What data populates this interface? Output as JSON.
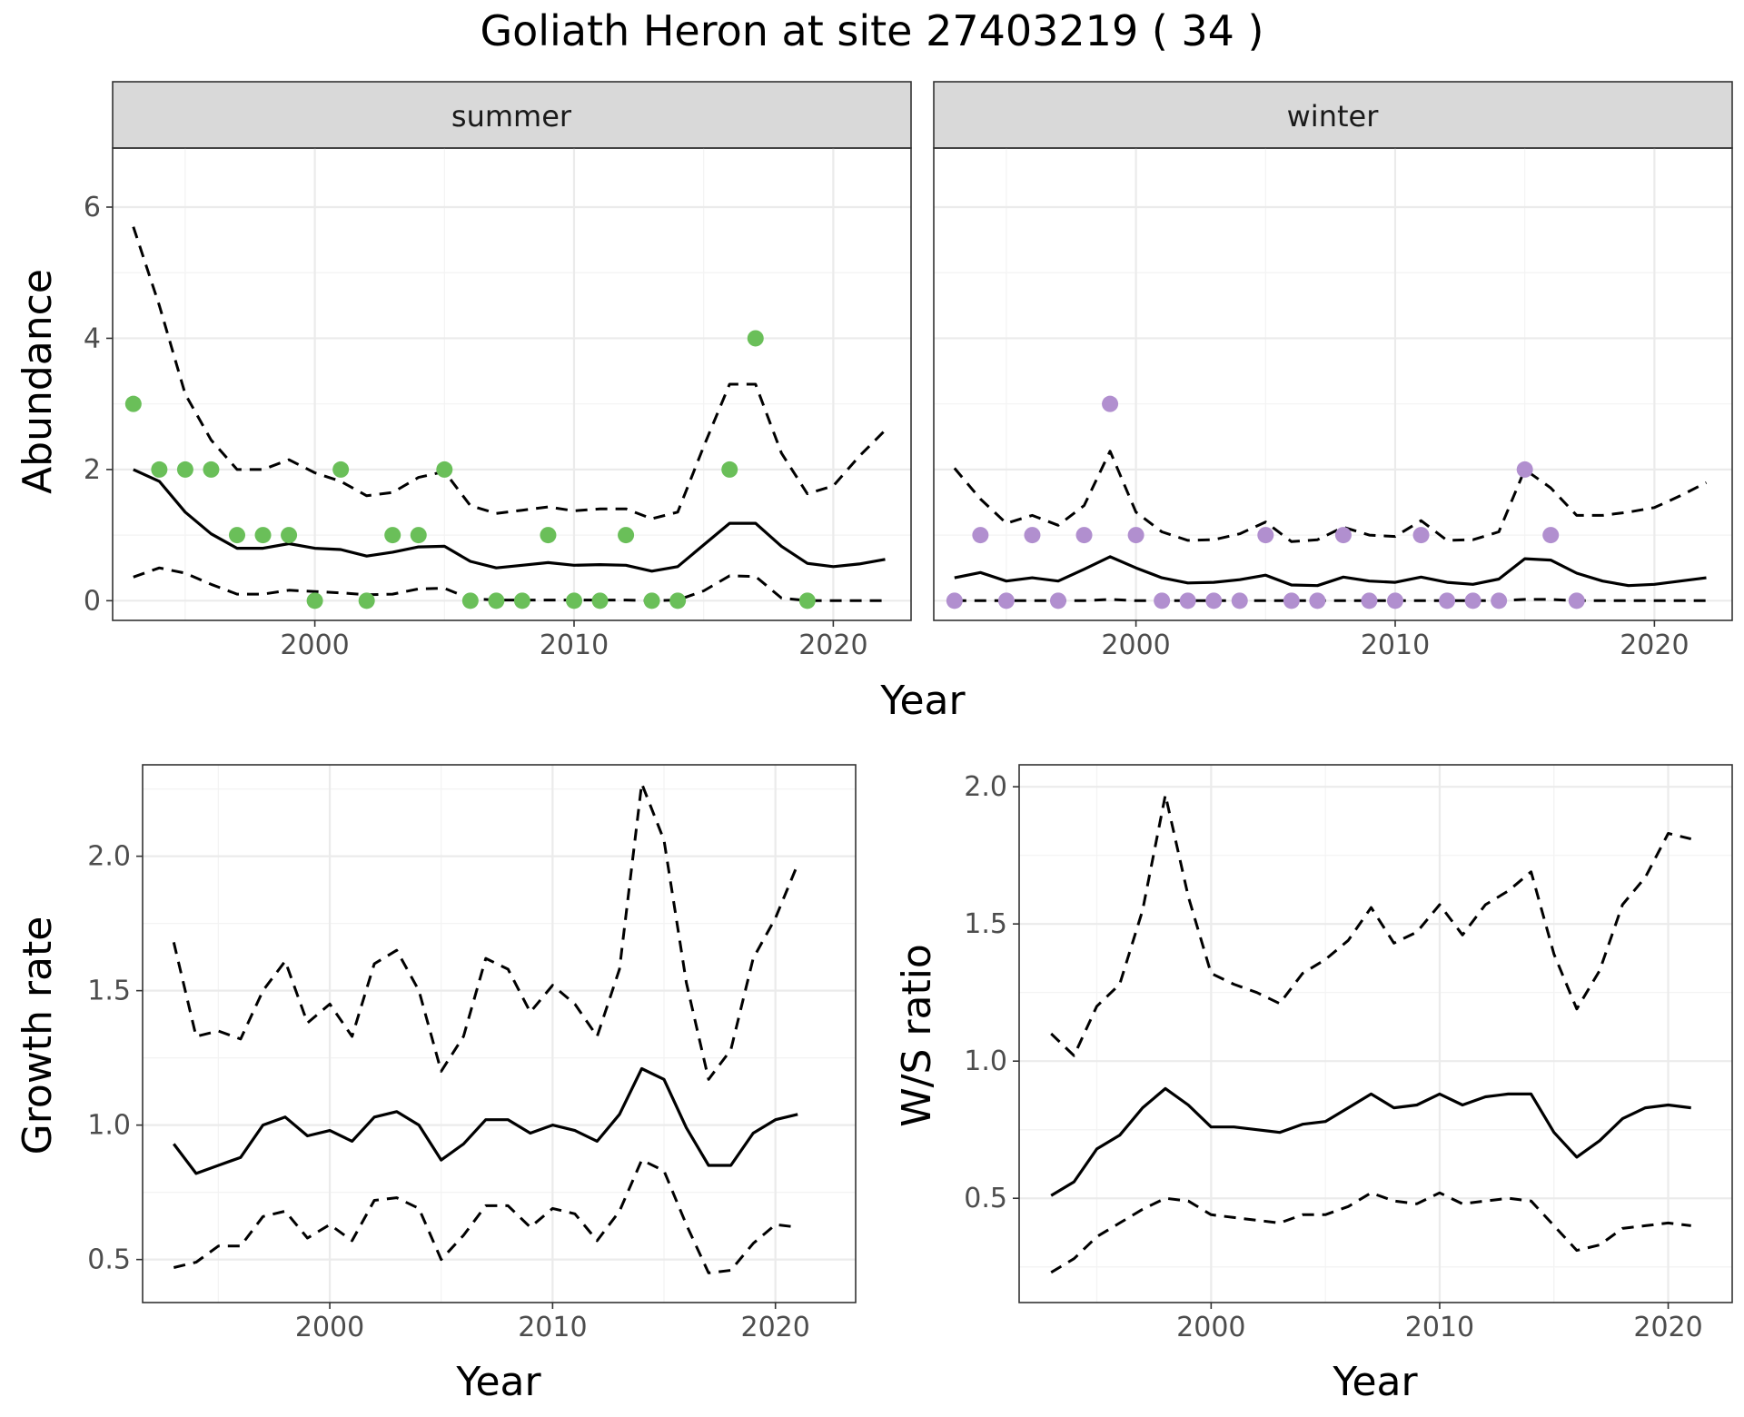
{
  "figure": {
    "title": "Goliath Heron at site 27403219 ( 34 )"
  },
  "colors": {
    "summer_points": "#6abf59",
    "winter_points": "#b18fcf",
    "lines": "#000000"
  },
  "chart_data": [
    {
      "id": "abundance",
      "type": "line",
      "title": "",
      "xlabel": "Year",
      "ylabel": "Abundance",
      "xlim": [
        1992.2,
        2023.0
      ],
      "ylim": [
        -0.3,
        6.9
      ],
      "x_ticks": [
        2000,
        2010,
        2020
      ],
      "y_ticks": [
        0,
        2,
        4,
        6
      ],
      "facets": [
        {
          "strip": "summer",
          "point_color": "#6abf59",
          "fit": {
            "x": [
              1993,
              1994,
              1995,
              1996,
              1997,
              1998,
              1999,
              2000,
              2001,
              2002,
              2003,
              2004,
              2005,
              2006,
              2007,
              2008,
              2009,
              2010,
              2011,
              2012,
              2013,
              2014,
              2015,
              2016,
              2017,
              2018,
              2019,
              2020,
              2021,
              2022
            ],
            "estimate": [
              2.0,
              1.82,
              1.35,
              1.02,
              0.8,
              0.8,
              0.87,
              0.8,
              0.78,
              0.68,
              0.74,
              0.82,
              0.83,
              0.6,
              0.5,
              0.54,
              0.58,
              0.54,
              0.55,
              0.54,
              0.45,
              0.52,
              0.85,
              1.18,
              1.18,
              0.83,
              0.57,
              0.52,
              0.56,
              0.63
            ],
            "lower": [
              0.36,
              0.5,
              0.42,
              0.25,
              0.1,
              0.1,
              0.16,
              0.14,
              0.12,
              0.09,
              0.1,
              0.18,
              0.19,
              0.03,
              0.01,
              0.01,
              0.01,
              0.01,
              0.01,
              0.01,
              0.0,
              0.01,
              0.15,
              0.38,
              0.37,
              0.04,
              0.0,
              0.0,
              0.0,
              0.0
            ],
            "upper": [
              5.7,
              4.5,
              3.15,
              2.45,
              2.0,
              2.0,
              2.15,
              1.95,
              1.82,
              1.6,
              1.65,
              1.88,
              1.97,
              1.45,
              1.33,
              1.38,
              1.43,
              1.37,
              1.4,
              1.4,
              1.25,
              1.35,
              2.35,
              3.3,
              3.3,
              2.25,
              1.63,
              1.75,
              2.2,
              2.6
            ]
          },
          "observed": {
            "x": [
              1993,
              1994,
              1995,
              1996,
              1997,
              1998,
              1999,
              2000,
              2001,
              2002,
              2003,
              2004,
              2005,
              2006,
              2007,
              2008,
              2009,
              2010,
              2011,
              2012,
              2013,
              2014,
              2016,
              2017,
              2019
            ],
            "y": [
              3,
              2,
              2,
              2,
              1,
              1,
              1,
              0,
              2,
              0,
              1,
              1,
              2,
              0,
              0,
              0,
              1,
              0,
              0,
              1,
              0,
              0,
              2,
              4,
              0
            ]
          }
        },
        {
          "strip": "winter",
          "point_color": "#b18fcf",
          "fit": {
            "x": [
              1993,
              1994,
              1995,
              1996,
              1997,
              1998,
              1999,
              2000,
              2001,
              2002,
              2003,
              2004,
              2005,
              2006,
              2007,
              2008,
              2009,
              2010,
              2011,
              2012,
              2013,
              2014,
              2015,
              2016,
              2017,
              2018,
              2019,
              2020,
              2021,
              2022
            ],
            "estimate": [
              0.35,
              0.43,
              0.3,
              0.35,
              0.3,
              0.48,
              0.67,
              0.5,
              0.35,
              0.27,
              0.28,
              0.32,
              0.39,
              0.24,
              0.23,
              0.36,
              0.3,
              0.28,
              0.36,
              0.28,
              0.25,
              0.33,
              0.64,
              0.62,
              0.42,
              0.3,
              0.23,
              0.25,
              0.3,
              0.35
            ],
            "lower": [
              0,
              0,
              0,
              0,
              0,
              0,
              0.02,
              0,
              0,
              0,
              0,
              0,
              0,
              0,
              0,
              0,
              0,
              0,
              0,
              0,
              0,
              0,
              0.02,
              0.02,
              0,
              0,
              0,
              0,
              0,
              0
            ],
            "upper": [
              2.02,
              1.55,
              1.18,
              1.3,
              1.15,
              1.45,
              2.28,
              1.35,
              1.05,
              0.92,
              0.93,
              1.02,
              1.2,
              0.9,
              0.93,
              1.12,
              1.0,
              0.98,
              1.22,
              0.92,
              0.93,
              1.05,
              2.0,
              1.72,
              1.3,
              1.3,
              1.35,
              1.42,
              1.6,
              1.8
            ]
          },
          "observed": {
            "x": [
              1993,
              1994,
              1995,
              1996,
              1997,
              1998,
              1999,
              2000,
              2001,
              2002,
              2003,
              2004,
              2005,
              2006,
              2007,
              2008,
              2009,
              2010,
              2011,
              2012,
              2013,
              2014,
              2015,
              2016,
              2017
            ],
            "y": [
              0,
              1,
              0,
              1,
              0,
              1,
              3,
              1,
              0,
              0,
              0,
              0,
              1,
              0,
              0,
              1,
              0,
              0,
              1,
              0,
              0,
              0,
              2,
              1,
              0
            ]
          }
        }
      ]
    },
    {
      "id": "growth",
      "type": "line",
      "title": "",
      "xlabel": "Year",
      "ylabel": "Growth rate",
      "xlim": [
        1991.6,
        2023.6
      ],
      "ylim": [
        0.34,
        2.34
      ],
      "x_ticks": [
        2000,
        2010,
        2020
      ],
      "y_ticks": [
        0.5,
        1.0,
        1.5,
        2.0
      ],
      "y_tick_labels": [
        "0.5",
        "1.0",
        "1.5",
        "2.0"
      ],
      "x": [
        1993,
        1994,
        1995,
        1996,
        1997,
        1998,
        1999,
        2000,
        2001,
        2002,
        2003,
        2004,
        2005,
        2006,
        2007,
        2008,
        2009,
        2010,
        2011,
        2012,
        2013,
        2014,
        2015,
        2016,
        2017,
        2018,
        2019,
        2020,
        2021
      ],
      "estimate": [
        0.93,
        0.82,
        0.85,
        0.88,
        1.0,
        1.03,
        0.96,
        0.98,
        0.94,
        1.03,
        1.05,
        1.0,
        0.87,
        0.93,
        1.02,
        1.02,
        0.97,
        1.0,
        0.98,
        0.94,
        1.04,
        1.21,
        1.17,
        0.99,
        0.85,
        0.85,
        0.97,
        1.02,
        1.04
      ],
      "lower": [
        0.47,
        0.49,
        0.55,
        0.55,
        0.66,
        0.68,
        0.58,
        0.63,
        0.57,
        0.72,
        0.73,
        0.69,
        0.5,
        0.59,
        0.7,
        0.7,
        0.62,
        0.69,
        0.67,
        0.57,
        0.68,
        0.87,
        0.83,
        0.63,
        0.45,
        0.46,
        0.56,
        0.63,
        0.62
      ],
      "upper": [
        1.68,
        1.33,
        1.35,
        1.32,
        1.5,
        1.61,
        1.38,
        1.45,
        1.33,
        1.6,
        1.65,
        1.5,
        1.2,
        1.33,
        1.62,
        1.58,
        1.42,
        1.52,
        1.45,
        1.33,
        1.58,
        2.27,
        2.06,
        1.53,
        1.17,
        1.28,
        1.62,
        1.77,
        1.97
      ]
    },
    {
      "id": "ws_ratio",
      "type": "line",
      "title": "",
      "xlabel": "Year",
      "ylabel": "W/S ratio",
      "xlim": [
        1991.6,
        2022.8
      ],
      "ylim": [
        0.12,
        2.08
      ],
      "x_ticks": [
        2000,
        2010,
        2020
      ],
      "y_ticks": [
        0.5,
        1.0,
        1.5,
        2.0
      ],
      "y_tick_labels": [
        "0.5",
        "1.0",
        "1.5",
        "2.0"
      ],
      "x": [
        1993,
        1994,
        1995,
        1996,
        1997,
        1998,
        1999,
        2000,
        2001,
        2002,
        2003,
        2004,
        2005,
        2006,
        2007,
        2008,
        2009,
        2010,
        2011,
        2012,
        2013,
        2014,
        2015,
        2016,
        2017,
        2018,
        2019,
        2020,
        2021
      ],
      "estimate": [
        0.51,
        0.56,
        0.68,
        0.73,
        0.83,
        0.9,
        0.84,
        0.76,
        0.76,
        0.75,
        0.74,
        0.77,
        0.78,
        0.83,
        0.88,
        0.83,
        0.84,
        0.88,
        0.84,
        0.87,
        0.88,
        0.88,
        0.74,
        0.65,
        0.71,
        0.79,
        0.83,
        0.84,
        0.83
      ],
      "lower": [
        0.23,
        0.28,
        0.36,
        0.41,
        0.46,
        0.5,
        0.49,
        0.44,
        0.43,
        0.42,
        0.41,
        0.44,
        0.44,
        0.47,
        0.52,
        0.49,
        0.48,
        0.52,
        0.48,
        0.49,
        0.5,
        0.49,
        0.4,
        0.31,
        0.33,
        0.39,
        0.4,
        0.41,
        0.4
      ],
      "upper": [
        1.1,
        1.02,
        1.2,
        1.28,
        1.55,
        1.97,
        1.6,
        1.32,
        1.28,
        1.25,
        1.21,
        1.32,
        1.37,
        1.44,
        1.56,
        1.43,
        1.47,
        1.57,
        1.46,
        1.57,
        1.62,
        1.69,
        1.39,
        1.19,
        1.33,
        1.57,
        1.67,
        1.83,
        1.81
      ]
    }
  ]
}
